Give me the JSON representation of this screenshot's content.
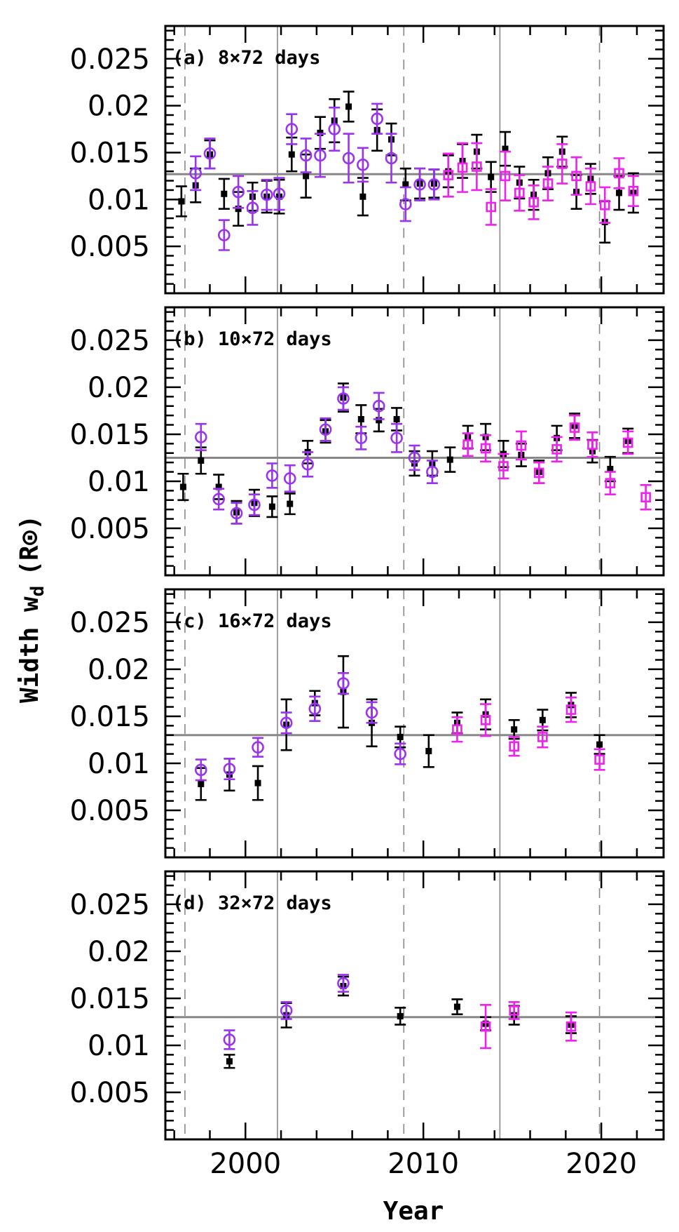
{
  "chart_data": {
    "type": "scatter",
    "xlabel": "Year",
    "ylabel": "Width w",
    "ylabel_subscript": "d",
    "ylabel_unit": "(R⊙)",
    "xlim": [
      1995.5,
      2023.5
    ],
    "ylim": [
      0,
      0.0285
    ],
    "x_ticks": [
      2000,
      2010,
      2020
    ],
    "x_tick_labels": [
      "2000",
      "2010",
      "2020"
    ],
    "y_ticks": [
      0.005,
      0.01,
      0.015,
      0.02,
      0.025
    ],
    "y_tick_labels": [
      "0.005",
      "0.01",
      "0.015",
      "0.02",
      "0.025"
    ],
    "reference_lines": {
      "dashed_years": [
        1996.6,
        2008.9,
        2019.9
      ],
      "solid_years": [
        2001.8,
        2014.3
      ]
    },
    "colors": {
      "black": "#000000",
      "purple": "#9933ee",
      "magenta": "#ee22ee",
      "reference": "#888888"
    },
    "panels": [
      {
        "label": "(a) 8×72 days",
        "mean": 0.0127,
        "series": [
          {
            "marker": "filled-square",
            "color": "black",
            "points": [
              [
                1996.4,
                0.0098,
                0.0016
              ],
              [
                1997.2,
                0.0115,
                0.0018
              ],
              [
                1998.0,
                0.0148,
                0.0015
              ],
              [
                1998.8,
                0.0106,
                0.0016
              ],
              [
                1999.6,
                0.009,
                0.0018
              ],
              [
                2000.4,
                0.0103,
                0.0015
              ],
              [
                2001.2,
                0.0103,
                0.0017
              ],
              [
                2001.9,
                0.0103,
                0.0018
              ],
              [
                2002.6,
                0.0148,
                0.0018
              ],
              [
                2003.4,
                0.0125,
                0.0023
              ],
              [
                2004.2,
                0.0171,
                0.0017
              ],
              [
                2005.0,
                0.0184,
                0.0023
              ],
              [
                2005.8,
                0.0199,
                0.0016
              ],
              [
                2006.6,
                0.0103,
                0.002
              ],
              [
                2007.4,
                0.0174,
                0.0022
              ],
              [
                2008.2,
                0.0164,
                0.0017
              ],
              [
                2009.0,
                0.0116,
                0.0017
              ],
              [
                2009.8,
                0.0117,
                0.0016
              ],
              [
                2010.6,
                0.0117,
                0.0015
              ],
              [
                2011.4,
                0.013,
                0.0017
              ],
              [
                2012.2,
                0.0141,
                0.0018
              ],
              [
                2013.0,
                0.0151,
                0.0018
              ],
              [
                2013.8,
                0.0124,
                0.0016
              ],
              [
                2014.6,
                0.0154,
                0.0018
              ],
              [
                2015.4,
                0.0118,
                0.0017
              ],
              [
                2016.2,
                0.0105,
                0.0016
              ],
              [
                2017.0,
                0.0128,
                0.0017
              ],
              [
                2017.8,
                0.0151,
                0.0016
              ],
              [
                2018.6,
                0.0108,
                0.0018
              ],
              [
                2019.4,
                0.0122,
                0.0016
              ],
              [
                2020.2,
                0.0076,
                0.0022
              ],
              [
                2021.0,
                0.0107,
                0.0018
              ],
              [
                2021.8,
                0.0107,
                0.0021
              ]
            ]
          },
          {
            "marker": "open-circle",
            "color": "purple",
            "points": [
              [
                1997.2,
                0.0128,
                0.0018
              ],
              [
                1998.0,
                0.0149,
                0.0016
              ],
              [
                1998.8,
                0.0062,
                0.0016
              ],
              [
                1999.6,
                0.0108,
                0.0017
              ],
              [
                2000.4,
                0.0091,
                0.0018
              ],
              [
                2001.2,
                0.0105,
                0.0016
              ],
              [
                2001.9,
                0.0106,
                0.0017
              ],
              [
                2002.6,
                0.0175,
                0.0016
              ],
              [
                2003.4,
                0.0147,
                0.0018
              ],
              [
                2004.2,
                0.0147,
                0.0023
              ],
              [
                2005.0,
                0.0175,
                0.0023
              ],
              [
                2005.8,
                0.0144,
                0.0026
              ],
              [
                2006.6,
                0.0137,
                0.0018
              ],
              [
                2007.4,
                0.0186,
                0.0016
              ],
              [
                2008.2,
                0.0144,
                0.0026
              ],
              [
                2009.0,
                0.0095,
                0.0018
              ],
              [
                2009.8,
                0.0116,
                0.0017
              ],
              [
                2010.6,
                0.0116,
                0.0016
              ]
            ]
          },
          {
            "marker": "open-square",
            "color": "magenta",
            "points": [
              [
                2011.4,
                0.0126,
                0.0023
              ],
              [
                2012.2,
                0.0134,
                0.0026
              ],
              [
                2013.0,
                0.0135,
                0.0025
              ],
              [
                2013.8,
                0.0092,
                0.0019
              ],
              [
                2014.6,
                0.0125,
                0.0026
              ],
              [
                2015.4,
                0.0107,
                0.0019
              ],
              [
                2016.2,
                0.0097,
                0.0018
              ],
              [
                2017.0,
                0.0117,
                0.0018
              ],
              [
                2017.8,
                0.0138,
                0.0021
              ],
              [
                2018.6,
                0.0125,
                0.002
              ],
              [
                2019.4,
                0.0114,
                0.0019
              ],
              [
                2020.2,
                0.0094,
                0.0019
              ],
              [
                2021.0,
                0.0128,
                0.0016
              ],
              [
                2021.8,
                0.0109,
                0.0016
              ]
            ]
          }
        ]
      },
      {
        "label": "(b) 10×72 days",
        "mean": 0.0125,
        "series": [
          {
            "marker": "filled-square",
            "color": "black",
            "points": [
              [
                1996.5,
                0.0094,
                0.0014
              ],
              [
                1997.5,
                0.0122,
                0.0014
              ],
              [
                1998.5,
                0.0094,
                0.0013
              ],
              [
                1999.5,
                0.0067,
                0.0012
              ],
              [
                2000.5,
                0.0077,
                0.0014
              ],
              [
                2001.5,
                0.0073,
                0.0011
              ],
              [
                2002.5,
                0.0076,
                0.0011
              ],
              [
                2003.5,
                0.0131,
                0.0012
              ],
              [
                2004.5,
                0.0153,
                0.0012
              ],
              [
                2005.5,
                0.0189,
                0.0015
              ],
              [
                2006.5,
                0.0166,
                0.0015
              ],
              [
                2007.5,
                0.0165,
                0.0012
              ],
              [
                2008.5,
                0.0166,
                0.0012
              ],
              [
                2009.5,
                0.0119,
                0.0013
              ],
              [
                2010.5,
                0.0119,
                0.0013
              ],
              [
                2011.5,
                0.0123,
                0.0013
              ],
              [
                2012.5,
                0.0147,
                0.0012
              ],
              [
                2013.5,
                0.0147,
                0.0014
              ],
              [
                2014.5,
                0.0129,
                0.0014
              ],
              [
                2015.5,
                0.0128,
                0.0012
              ],
              [
                2016.5,
                0.011,
                0.0012
              ],
              [
                2017.5,
                0.0146,
                0.0013
              ],
              [
                2018.5,
                0.0159,
                0.0013
              ],
              [
                2019.5,
                0.0132,
                0.0012
              ],
              [
                2020.5,
                0.0113,
                0.0013
              ],
              [
                2021.5,
                0.0143,
                0.0013
              ]
            ]
          },
          {
            "marker": "open-circle",
            "color": "purple",
            "points": [
              [
                1997.5,
                0.0147,
                0.0014
              ],
              [
                1998.5,
                0.0081,
                0.0011
              ],
              [
                1999.5,
                0.0066,
                0.0011
              ],
              [
                2000.5,
                0.0075,
                0.0011
              ],
              [
                2001.5,
                0.0106,
                0.0013
              ],
              [
                2002.5,
                0.0103,
                0.0014
              ],
              [
                2003.5,
                0.0118,
                0.0013
              ],
              [
                2004.5,
                0.0155,
                0.0012
              ],
              [
                2005.5,
                0.0188,
                0.0012
              ],
              [
                2006.5,
                0.0146,
                0.0012
              ],
              [
                2007.5,
                0.018,
                0.0014
              ],
              [
                2008.5,
                0.0146,
                0.0015
              ],
              [
                2009.5,
                0.0125,
                0.0013
              ],
              [
                2010.5,
                0.011,
                0.0012
              ]
            ]
          },
          {
            "marker": "open-square",
            "color": "magenta",
            "points": [
              [
                2012.5,
                0.0139,
                0.0012
              ],
              [
                2013.5,
                0.0135,
                0.0014
              ],
              [
                2014.5,
                0.0116,
                0.0013
              ],
              [
                2015.5,
                0.0138,
                0.0015
              ],
              [
                2016.5,
                0.0109,
                0.0011
              ],
              [
                2017.5,
                0.0134,
                0.0013
              ],
              [
                2018.5,
                0.0157,
                0.0013
              ],
              [
                2019.5,
                0.0139,
                0.0013
              ],
              [
                2020.5,
                0.0098,
                0.0012
              ],
              [
                2021.5,
                0.0141,
                0.0012
              ],
              [
                2022.5,
                0.0083,
                0.0013
              ]
            ]
          }
        ]
      },
      {
        "label": "(c) 16×72 days",
        "mean": 0.013,
        "series": [
          {
            "marker": "filled-square",
            "color": "black",
            "points": [
              [
                1997.5,
                0.0078,
                0.0017
              ],
              [
                1999.1,
                0.0088,
                0.0017
              ],
              [
                2000.7,
                0.0079,
                0.0018
              ],
              [
                2002.3,
                0.0141,
                0.0027
              ],
              [
                2003.9,
                0.0164,
                0.0013
              ],
              [
                2005.5,
                0.0176,
                0.0038
              ],
              [
                2007.1,
                0.0143,
                0.0025
              ],
              [
                2008.7,
                0.0128,
                0.0011
              ],
              [
                2010.3,
                0.0113,
                0.0017
              ],
              [
                2011.9,
                0.0143,
                0.0011
              ],
              [
                2013.5,
                0.0152,
                0.0016
              ],
              [
                2015.1,
                0.0136,
                0.001
              ],
              [
                2016.7,
                0.0146,
                0.0011
              ],
              [
                2018.3,
                0.0162,
                0.0013
              ],
              [
                2019.9,
                0.012,
                0.001
              ]
            ]
          },
          {
            "marker": "open-circle",
            "color": "purple",
            "points": [
              [
                1997.5,
                0.0093,
                0.0011
              ],
              [
                1999.1,
                0.0094,
                0.0011
              ],
              [
                2000.7,
                0.0117,
                0.001
              ],
              [
                2002.3,
                0.0143,
                0.0011
              ],
              [
                2003.9,
                0.0158,
                0.0013
              ],
              [
                2005.5,
                0.0185,
                0.0011
              ],
              [
                2007.1,
                0.0154,
                0.0011
              ],
              [
                2008.7,
                0.011,
                0.0011
              ]
            ]
          },
          {
            "marker": "open-square",
            "color": "magenta",
            "points": [
              [
                2011.9,
                0.0136,
                0.0013
              ],
              [
                2013.5,
                0.0146,
                0.0017
              ],
              [
                2015.1,
                0.0118,
                0.001
              ],
              [
                2016.7,
                0.0128,
                0.0011
              ],
              [
                2018.3,
                0.0157,
                0.0013
              ],
              [
                2019.9,
                0.0104,
                0.0011
              ]
            ]
          }
        ]
      },
      {
        "label": "(d) 32×72 days",
        "mean": 0.013,
        "series": [
          {
            "marker": "filled-square",
            "color": "black",
            "points": [
              [
                1999.1,
                0.0083,
                0.0007
              ],
              [
                2002.3,
                0.0132,
                0.0013
              ],
              [
                2005.5,
                0.0163,
                0.001
              ],
              [
                2008.7,
                0.0131,
                0.0009
              ],
              [
                2011.9,
                0.0141,
                0.0008
              ],
              [
                2013.5,
                0.0123,
                0.0007
              ],
              [
                2015.1,
                0.0132,
                0.001
              ],
              [
                2018.3,
                0.0122,
                0.0009
              ]
            ]
          },
          {
            "marker": "open-circle",
            "color": "purple",
            "points": [
              [
                1999.1,
                0.0106,
                0.001
              ],
              [
                2002.3,
                0.0137,
                0.0009
              ],
              [
                2005.5,
                0.0166,
                0.0009
              ]
            ]
          },
          {
            "marker": "open-square",
            "color": "magenta",
            "points": [
              [
                2013.5,
                0.012,
                0.0023
              ],
              [
                2015.1,
                0.0137,
                0.0009
              ],
              [
                2018.3,
                0.012,
                0.0015
              ]
            ]
          }
        ]
      }
    ]
  }
}
